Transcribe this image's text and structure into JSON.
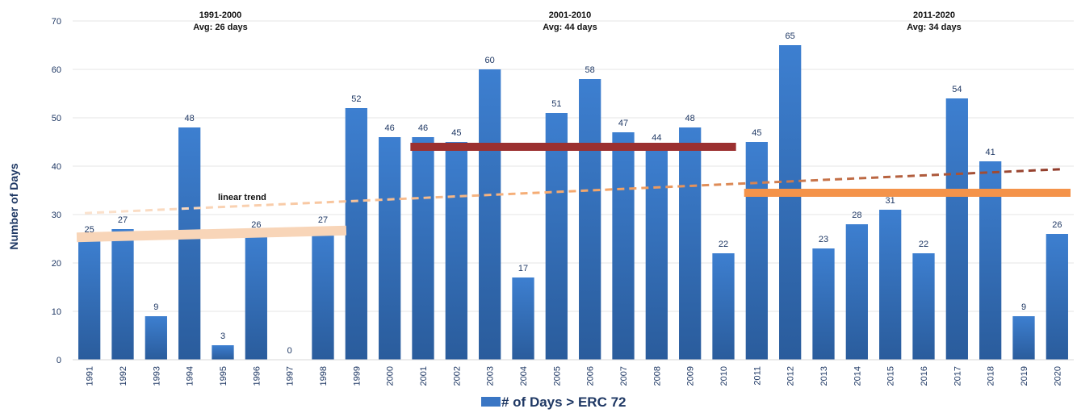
{
  "chart_data": {
    "type": "bar",
    "categories": [
      "1991",
      "1992",
      "1993",
      "1994",
      "1995",
      "1996",
      "1997",
      "1998",
      "1999",
      "2000",
      "2001",
      "2002",
      "2003",
      "2004",
      "2005",
      "2006",
      "2007",
      "2008",
      "2009",
      "2010",
      "2011",
      "2012",
      "2013",
      "2014",
      "2015",
      "2016",
      "2017",
      "2018",
      "2019",
      "2020"
    ],
    "series": [
      {
        "name": "# of Days > ERC 72",
        "values": [
          25,
          27,
          9,
          48,
          3,
          26,
          0,
          27,
          52,
          46,
          46,
          45,
          60,
          17,
          51,
          58,
          47,
          44,
          48,
          22,
          45,
          65,
          23,
          28,
          31,
          22,
          54,
          41,
          9,
          26
        ]
      }
    ],
    "ylabel": "Number of Days",
    "xlabel": "",
    "ylim": [
      0,
      70
    ],
    "yticks": [
      0,
      10,
      20,
      30,
      40,
      50,
      60,
      70
    ],
    "grid": true,
    "legend_position": "bottom-center",
    "decades": [
      {
        "label": "1991-2000",
        "avg_label": "Avg: 26 days",
        "start": "1991",
        "end": "1998",
        "avg": 26,
        "color": "#f8d5b8"
      },
      {
        "label": "2001-2010",
        "avg_label": "Avg: 44 days",
        "start": "2001",
        "end": "2010",
        "avg": 44,
        "color": "#9b3030"
      },
      {
        "label": "2011-2020",
        "avg_label": "Avg: 34 days",
        "start": "2011",
        "end": "2020",
        "avg": 34.5,
        "color": "#f4934a"
      }
    ],
    "trend": {
      "label": "linear trend",
      "start_value": 30.3,
      "end_value": 39.4
    },
    "colors": {
      "bar_top": "#3d7fd0",
      "bar_bottom": "#2a5c9c",
      "axis_text": "#1f3864"
    }
  }
}
